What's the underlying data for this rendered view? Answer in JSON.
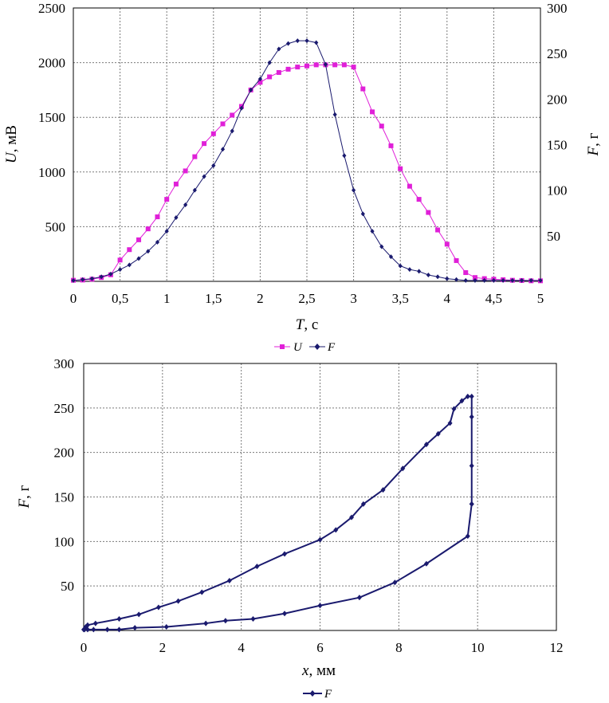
{
  "chart_data": [
    {
      "type": "line",
      "title": "",
      "xlabel": {
        "var": "T",
        "unit": ", c"
      },
      "ylabel_left": {
        "var": "U",
        "unit": ", мВ"
      },
      "ylabel_right": {
        "var": "F",
        "unit": ", г"
      },
      "x_ticks": [
        "0",
        "0,5",
        "1",
        "1,5",
        "2",
        "2,5",
        "3",
        "3,5",
        "4",
        "4,5",
        "5"
      ],
      "y_left_ticks": [
        "500",
        "1000",
        "1500",
        "2000",
        "2500"
      ],
      "y_right_ticks": [
        "50",
        "100",
        "150",
        "200",
        "250",
        "300"
      ],
      "xlim": [
        0,
        5
      ],
      "ylim_left": [
        0,
        2500
      ],
      "ylim_right": [
        0,
        300
      ],
      "grid": true,
      "legend_position": "bottom-center",
      "colors": {
        "U": "#e020d8",
        "F": "#1a1a6e"
      },
      "series": [
        {
          "name": "U",
          "axis": "left",
          "marker": "square",
          "x": [
            0,
            0.1,
            0.2,
            0.3,
            0.4,
            0.5,
            0.6,
            0.7,
            0.8,
            0.9,
            1.0,
            1.1,
            1.2,
            1.3,
            1.4,
            1.5,
            1.6,
            1.7,
            1.8,
            1.9,
            2.0,
            2.1,
            2.2,
            2.3,
            2.4,
            2.5,
            2.6,
            2.7,
            2.8,
            2.9,
            3.0,
            3.1,
            3.2,
            3.3,
            3.4,
            3.5,
            3.6,
            3.7,
            3.8,
            3.9,
            4.0,
            4.1,
            4.2,
            4.3,
            4.4,
            4.5,
            4.6,
            4.7,
            4.8,
            4.9,
            5.0
          ],
          "y": [
            10,
            12,
            20,
            35,
            60,
            195,
            290,
            380,
            480,
            590,
            750,
            890,
            1010,
            1140,
            1260,
            1350,
            1440,
            1520,
            1600,
            1750,
            1820,
            1870,
            1910,
            1940,
            1960,
            1970,
            1980,
            1980,
            1980,
            1980,
            1960,
            1760,
            1550,
            1420,
            1240,
            1030,
            870,
            750,
            630,
            470,
            340,
            190,
            80,
            35,
            25,
            20,
            15,
            10,
            8,
            5,
            5
          ]
        },
        {
          "name": "F",
          "axis": "right",
          "marker": "diamond",
          "x": [
            0,
            0.1,
            0.2,
            0.3,
            0.4,
            0.5,
            0.6,
            0.7,
            0.8,
            0.9,
            1.0,
            1.1,
            1.2,
            1.3,
            1.4,
            1.5,
            1.6,
            1.7,
            1.8,
            1.9,
            2.0,
            2.1,
            2.2,
            2.3,
            2.4,
            2.5,
            2.6,
            2.7,
            2.8,
            2.9,
            3.0,
            3.1,
            3.2,
            3.3,
            3.4,
            3.5,
            3.6,
            3.7,
            3.8,
            3.9,
            4.0,
            4.1,
            4.2,
            4.3,
            4.4,
            4.5,
            4.6,
            4.7,
            4.8,
            4.9,
            5.0
          ],
          "y": [
            1,
            2,
            3,
            5,
            8,
            13,
            18,
            25,
            33,
            43,
            55,
            70,
            84,
            100,
            115,
            127,
            145,
            165,
            190,
            210,
            222,
            240,
            255,
            261,
            264,
            264,
            262,
            238,
            183,
            138,
            100,
            74,
            55,
            38,
            27,
            17,
            13,
            11,
            7,
            5,
            3,
            2,
            1,
            1,
            1,
            1,
            1,
            1,
            1,
            1,
            1
          ]
        }
      ]
    },
    {
      "type": "line",
      "title": "",
      "xlabel": {
        "var": "x",
        "unit": ", мм"
      },
      "ylabel": {
        "var": "F",
        "unit": ", г"
      },
      "x_ticks": [
        "0",
        "2",
        "4",
        "6",
        "8",
        "10",
        "12"
      ],
      "y_ticks": [
        "50",
        "100",
        "150",
        "200",
        "250",
        "300"
      ],
      "xlim": [
        0,
        12
      ],
      "ylim": [
        0,
        300
      ],
      "grid": true,
      "legend_position": "bottom-center",
      "colors": {
        "F": "#1a1a6e"
      },
      "series": [
        {
          "name": "F",
          "marker": "diamond",
          "x": [
            0,
            0.05,
            0.1,
            0.3,
            0.9,
            1.4,
            1.9,
            2.4,
            3.0,
            3.7,
            4.4,
            5.1,
            6.0,
            6.4,
            6.8,
            7.1,
            7.6,
            8.1,
            8.7,
            9.0,
            9.3,
            9.4,
            9.6,
            9.75,
            9.85,
            9.85,
            9.85,
            9.85,
            9.85,
            9.75,
            8.7,
            7.9,
            7.0,
            6.0,
            5.1,
            4.3,
            3.6,
            3.1,
            2.1,
            1.3,
            0.9,
            0.6,
            0.25,
            0.1,
            0.02
          ],
          "y": [
            1,
            4,
            6,
            8,
            13,
            18,
            26,
            33,
            43,
            56,
            72,
            86,
            102,
            113,
            127,
            142,
            158,
            182,
            209,
            221,
            233,
            249,
            258,
            263,
            263,
            240,
            185,
            142,
            142,
            106,
            75,
            54,
            37,
            28,
            19,
            13,
            11,
            8,
            4,
            3,
            1,
            1,
            1,
            1,
            1
          ]
        }
      ]
    }
  ]
}
